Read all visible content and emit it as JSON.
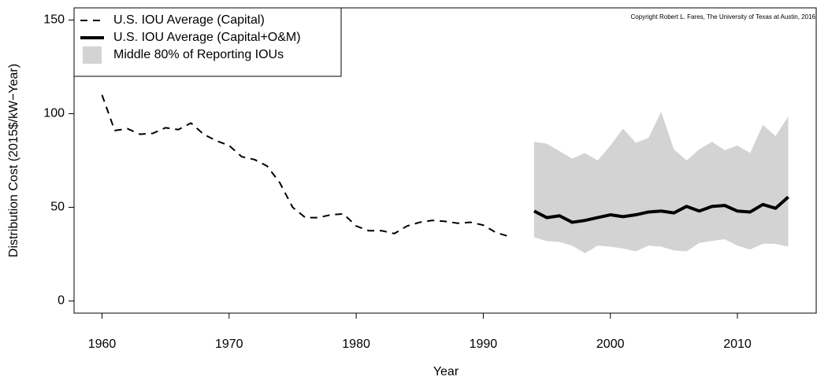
{
  "chart_data": {
    "type": "line",
    "x_label": "Year",
    "y_label": "Distribution Cost (2015$/kW−Year)",
    "annotation": "Copyright Robert L. Fares, The University of Texas at Austin, 2016",
    "xlim": [
      1957.8,
      2016.2
    ],
    "ylim": [
      -6.5,
      156.5
    ],
    "xticks": [
      1960,
      1970,
      1980,
      1990,
      2000,
      2010
    ],
    "yticks": [
      0,
      50,
      100,
      150
    ],
    "legend": "top-left",
    "series": [
      {
        "name": "U.S. IOU Average (Capital)",
        "color": "#000000",
        "dash": true,
        "x": [
          1960,
          1961,
          1962,
          1963,
          1964,
          1965,
          1966,
          1967,
          1968,
          1969,
          1970,
          1971,
          1972,
          1973,
          1974,
          1975,
          1976,
          1977,
          1978,
          1979,
          1980,
          1981,
          1982,
          1983,
          1984,
          1985,
          1986,
          1987,
          1988,
          1989,
          1990,
          1991,
          1992
        ],
        "values": [
          110,
          91,
          92,
          89,
          89.5,
          92.5,
          91.5,
          95,
          89,
          85.5,
          83,
          77,
          75.5,
          72,
          63,
          50,
          44.5,
          44.5,
          46,
          46.5,
          40,
          37.5,
          37.5,
          36,
          40,
          42,
          43,
          42.5,
          41.5,
          42,
          40.5,
          36.5,
          34.5
        ]
      },
      {
        "name": "U.S. IOU Average (Capital+O&M)",
        "color": "#000000",
        "dash": false,
        "x": [
          1994,
          1995,
          1996,
          1997,
          1998,
          1999,
          2000,
          2001,
          2002,
          2003,
          2004,
          2005,
          2006,
          2007,
          2008,
          2009,
          2010,
          2011,
          2012,
          2013,
          2014
        ],
        "values": [
          48,
          44.5,
          45.5,
          42,
          43,
          44.5,
          46,
          45,
          46,
          47.5,
          48,
          47,
          50.5,
          48,
          50.5,
          51,
          48,
          47.5,
          51.5,
          49.5,
          55.5
        ]
      }
    ],
    "band": {
      "name": "Middle 80% of Reporting IOUs",
      "color": "#d3d3d3",
      "x": [
        1994,
        1995,
        1996,
        1997,
        1998,
        1999,
        2000,
        2001,
        2002,
        2003,
        2004,
        2005,
        2006,
        2007,
        2008,
        2009,
        2010,
        2011,
        2012,
        2013,
        2014
      ],
      "upper": [
        85,
        84,
        80,
        76,
        79,
        75,
        83,
        92,
        84.5,
        87,
        101,
        81,
        75,
        81,
        85,
        80.5,
        83,
        79,
        94,
        88,
        98.5
      ],
      "lower": [
        34,
        32,
        31.5,
        29.5,
        25.5,
        29.5,
        29,
        28,
        26.5,
        29.5,
        29,
        27,
        26.5,
        31,
        32,
        33,
        29.5,
        27.5,
        30.5,
        30.5,
        29
      ]
    }
  }
}
